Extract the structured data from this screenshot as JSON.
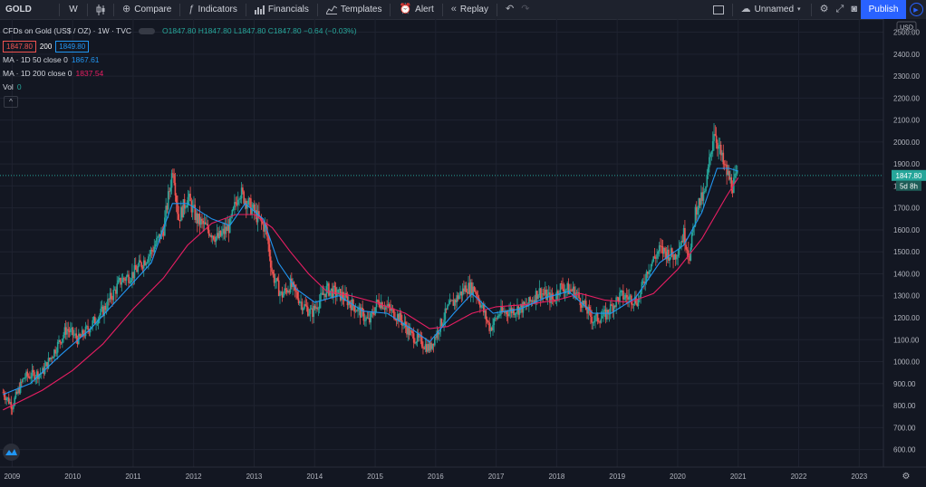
{
  "toolbar": {
    "symbol": "GOLD",
    "interval": "W",
    "compare": "Compare",
    "indicators": "Indicators",
    "financials": "Financials",
    "templates": "Templates",
    "alert": "Alert",
    "replay": "Replay",
    "layout_name": "Unnamed",
    "publish": "Publish"
  },
  "legend": {
    "title": "CFDs on Gold (US$ / OZ) · 1W · TVC",
    "ohlc": "O1847.80 H1847.80 L1847.80 C1847.80 −0.64 (−0.03%)",
    "bid": "1847.80",
    "spread": "200",
    "ask": "1849.80",
    "ma50_label": "MA · 1D 50 close 0",
    "ma50_value": "1867.61",
    "ma200_label": "MA · 1D 200 close 0",
    "ma200_value": "1837.54",
    "vol_label": "Vol",
    "vol_value": "0",
    "collapse_glyph": "^"
  },
  "price_axis": {
    "currency": "USD",
    "last_price": "1847.80",
    "countdown": "5d 8h"
  },
  "colors": {
    "up": "#26a69a",
    "down": "#ef5350",
    "ma50": "#2196f3",
    "ma200": "#e91e63",
    "background": "#131722"
  },
  "chart_data": {
    "type": "candlestick",
    "y_ticks": [
      2500,
      2400,
      2300,
      2200,
      2100,
      2000,
      1900,
      1800,
      1700,
      1600,
      1500,
      1400,
      1300,
      1200,
      1100,
      1000,
      900,
      800,
      700,
      600
    ],
    "y_tick_labels": [
      "2500.00",
      "2400.00",
      "2300.00",
      "2200.00",
      "2100.00",
      "2000.00",
      "1900.00",
      "1800.00",
      "1700.00",
      "1600.00",
      "1500.00",
      "1400.00",
      "1300.00",
      "1200.00",
      "1100.00",
      "1000.00",
      "900.00",
      "800.00",
      "700.00",
      "600.00"
    ],
    "x_ticks": [
      2009,
      2010,
      2011,
      2012,
      2013,
      2014,
      2015,
      2016,
      2017,
      2018,
      2019,
      2020,
      2021,
      2022,
      2023
    ],
    "x_tick_labels": [
      "2009",
      "2010",
      "2011",
      "2012",
      "2013",
      "2014",
      "2015",
      "2016",
      "2017",
      "2018",
      "2019",
      "2020",
      "2021",
      "2022",
      "2023"
    ],
    "ylim": [
      520,
      2560
    ],
    "xlim": [
      2008.8,
      2023.4
    ],
    "last_price": 1847.8,
    "price_path": [
      [
        2008.85,
        860
      ],
      [
        2009.0,
        800
      ],
      [
        2009.2,
        930
      ],
      [
        2009.5,
        950
      ],
      [
        2009.9,
        1150
      ],
      [
        2010.1,
        1100
      ],
      [
        2010.5,
        1230
      ],
      [
        2010.8,
        1370
      ],
      [
        2011.0,
        1400
      ],
      [
        2011.3,
        1500
      ],
      [
        2011.5,
        1600
      ],
      [
        2011.66,
        1890
      ],
      [
        2011.75,
        1650
      ],
      [
        2011.9,
        1750
      ],
      [
        2012.05,
        1650
      ],
      [
        2012.4,
        1560
      ],
      [
        2012.6,
        1620
      ],
      [
        2012.75,
        1780
      ],
      [
        2012.95,
        1700
      ],
      [
        2013.2,
        1600
      ],
      [
        2013.3,
        1400
      ],
      [
        2013.45,
        1300
      ],
      [
        2013.6,
        1350
      ],
      [
        2013.8,
        1260
      ],
      [
        2013.95,
        1220
      ],
      [
        2014.2,
        1330
      ],
      [
        2014.45,
        1300
      ],
      [
        2014.7,
        1240
      ],
      [
        2014.9,
        1180
      ],
      [
        2015.05,
        1280
      ],
      [
        2015.4,
        1200
      ],
      [
        2015.6,
        1120
      ],
      [
        2015.9,
        1060
      ],
      [
        2016.2,
        1240
      ],
      [
        2016.5,
        1340
      ],
      [
        2016.65,
        1330
      ],
      [
        2016.9,
        1150
      ],
      [
        2017.05,
        1220
      ],
      [
        2017.5,
        1250
      ],
      [
        2017.7,
        1320
      ],
      [
        2017.95,
        1280
      ],
      [
        2018.05,
        1340
      ],
      [
        2018.3,
        1320
      ],
      [
        2018.6,
        1190
      ],
      [
        2018.8,
        1210
      ],
      [
        2019.05,
        1300
      ],
      [
        2019.35,
        1280
      ],
      [
        2019.5,
        1420
      ],
      [
        2019.7,
        1510
      ],
      [
        2019.95,
        1480
      ],
      [
        2020.1,
        1580
      ],
      [
        2020.2,
        1480
      ],
      [
        2020.3,
        1700
      ],
      [
        2020.45,
        1760
      ],
      [
        2020.6,
        2060
      ],
      [
        2020.75,
        1900
      ],
      [
        2020.9,
        1800
      ],
      [
        2021.0,
        1847.8
      ]
    ],
    "ma50_path": [
      [
        2008.85,
        850
      ],
      [
        2009.3,
        900
      ],
      [
        2009.8,
        1030
      ],
      [
        2010.3,
        1150
      ],
      [
        2010.8,
        1300
      ],
      [
        2011.3,
        1450
      ],
      [
        2011.65,
        1720
      ],
      [
        2011.9,
        1720
      ],
      [
        2012.3,
        1650
      ],
      [
        2012.6,
        1620
      ],
      [
        2012.85,
        1720
      ],
      [
        2013.15,
        1650
      ],
      [
        2013.4,
        1450
      ],
      [
        2013.7,
        1330
      ],
      [
        2014.0,
        1270
      ],
      [
        2014.4,
        1300
      ],
      [
        2014.8,
        1230
      ],
      [
        2015.2,
        1220
      ],
      [
        2015.6,
        1150
      ],
      [
        2015.9,
        1090
      ],
      [
        2016.3,
        1220
      ],
      [
        2016.6,
        1310
      ],
      [
        2016.95,
        1220
      ],
      [
        2017.4,
        1240
      ],
      [
        2017.8,
        1290
      ],
      [
        2018.2,
        1320
      ],
      [
        2018.6,
        1220
      ],
      [
        2018.9,
        1220
      ],
      [
        2019.3,
        1290
      ],
      [
        2019.7,
        1450
      ],
      [
        2020.1,
        1530
      ],
      [
        2020.4,
        1680
      ],
      [
        2020.65,
        1880
      ],
      [
        2020.85,
        1880
      ],
      [
        2021.0,
        1867.61
      ]
    ],
    "ma200_path": [
      [
        2008.85,
        780
      ],
      [
        2009.5,
        870
      ],
      [
        2010.0,
        960
      ],
      [
        2010.5,
        1080
      ],
      [
        2011.0,
        1240
      ],
      [
        2011.5,
        1380
      ],
      [
        2011.9,
        1530
      ],
      [
        2012.3,
        1630
      ],
      [
        2012.7,
        1670
      ],
      [
        2013.0,
        1670
      ],
      [
        2013.3,
        1610
      ],
      [
        2013.6,
        1500
      ],
      [
        2013.9,
        1400
      ],
      [
        2014.2,
        1320
      ],
      [
        2014.6,
        1300
      ],
      [
        2015.0,
        1270
      ],
      [
        2015.5,
        1220
      ],
      [
        2015.9,
        1150
      ],
      [
        2016.2,
        1160
      ],
      [
        2016.6,
        1220
      ],
      [
        2017.0,
        1250
      ],
      [
        2017.5,
        1260
      ],
      [
        2018.0,
        1280
      ],
      [
        2018.4,
        1310
      ],
      [
        2018.8,
        1280
      ],
      [
        2019.2,
        1270
      ],
      [
        2019.6,
        1310
      ],
      [
        2020.0,
        1420
      ],
      [
        2020.4,
        1560
      ],
      [
        2020.8,
        1750
      ],
      [
        2021.0,
        1837.54
      ]
    ]
  }
}
